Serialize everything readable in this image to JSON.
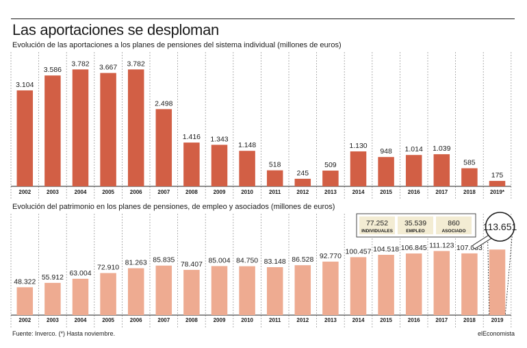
{
  "header": {
    "title": "Las aportaciones se desploman",
    "brand_color": "#1a1a1a"
  },
  "chart_data": [
    {
      "type": "bar",
      "title": "Evolución de las aportaciones a los planes de pensiones del sistema individual (millones de euros)",
      "categories": [
        "2002",
        "2003",
        "2004",
        "2005",
        "2006",
        "2007",
        "2008",
        "2009",
        "2010",
        "2011",
        "2012",
        "2013",
        "2014",
        "2015",
        "2016",
        "2017",
        "2018",
        "2019*"
      ],
      "values": [
        3104,
        3586,
        3782,
        3667,
        3782,
        2498,
        1416,
        1343,
        1148,
        518,
        245,
        509,
        1130,
        948,
        1014,
        1039,
        585,
        175
      ],
      "labels": [
        "3.104",
        "3.586",
        "3.782",
        "3.667",
        "3.782",
        "2.498",
        "1.416",
        "1.343",
        "1.148",
        "518",
        "245",
        "509",
        "1.130",
        "948",
        "1.014",
        "1.039",
        "585",
        "175"
      ],
      "ylim": [
        0,
        4100
      ],
      "color": "#d25f45",
      "xlabel": "",
      "ylabel": ""
    },
    {
      "type": "bar",
      "title": "Evolución del patrimonio en los planes de pensiones, de empleo y asociados (millones de euros)",
      "categories": [
        "2002",
        "2003",
        "2004",
        "2005",
        "2006",
        "2007",
        "2008",
        "2009",
        "2010",
        "2011",
        "2012",
        "2013",
        "2014",
        "2015",
        "2016",
        "2017",
        "2018",
        "2019"
      ],
      "values": [
        48322,
        55912,
        63004,
        72910,
        81263,
        85835,
        78407,
        85004,
        84750,
        83148,
        86528,
        92770,
        100457,
        104518,
        106845,
        111123,
        107033,
        113651
      ],
      "labels": [
        "48.322",
        "55.912",
        "63.004",
        "72.910",
        "81.263",
        "85.835",
        "78.407",
        "85.004",
        "84.750",
        "83.148",
        "86.528",
        "92.770",
        "100.457",
        "104.518",
        "106.845",
        "111.123",
        "107.033",
        "113.651"
      ],
      "ylim": [
        0,
        190000
      ],
      "color": "#eeab91",
      "xlabel": "",
      "ylabel": "",
      "breakdown_2019": [
        {
          "value": "77.252",
          "label": "INDIVIDUALES"
        },
        {
          "value": "35.539",
          "label": "EMPLEO"
        },
        {
          "value": "860",
          "label": "ASOCIADO"
        }
      ],
      "breakdown_color": "#f3ecd3"
    }
  ],
  "footer": {
    "source": "Fuente: Inverco. (*) Hasta noviembre.",
    "brand": "elEconomista"
  }
}
